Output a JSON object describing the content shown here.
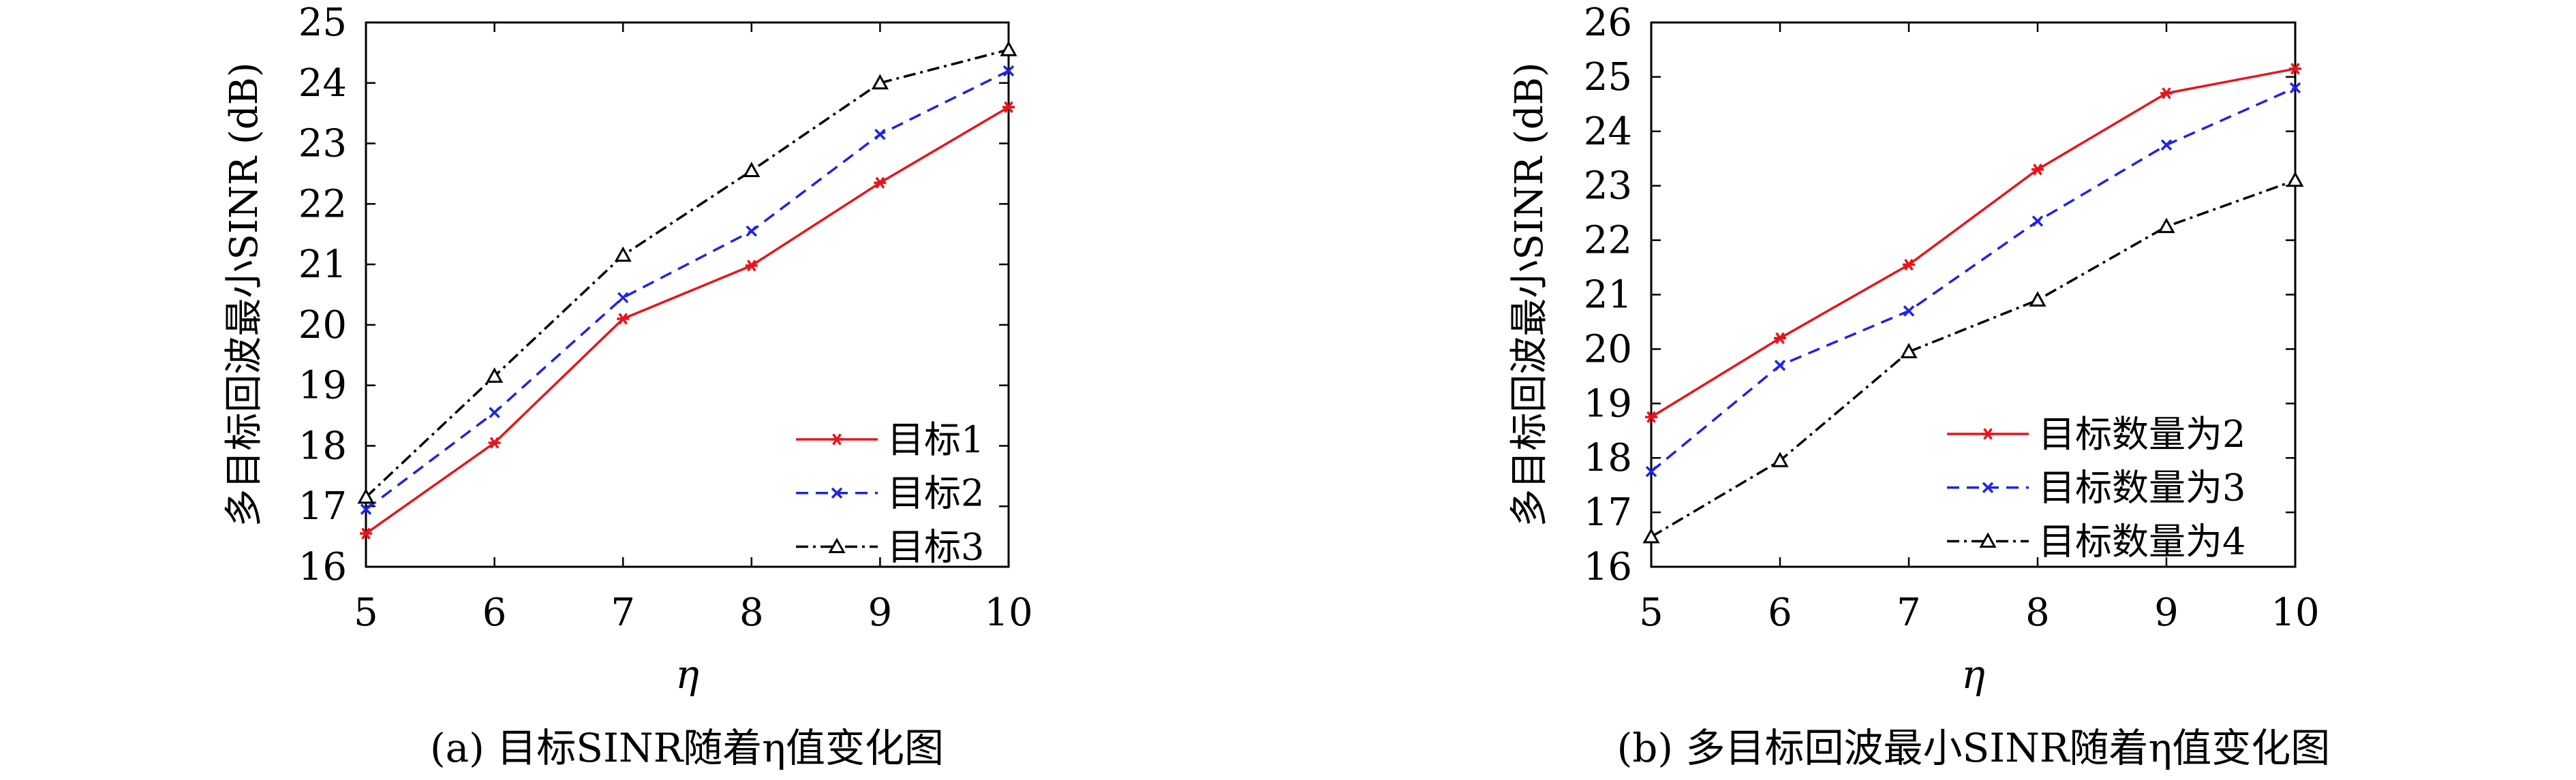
{
  "chart_data": [
    {
      "type": "line",
      "caption": "(a) 目标SINR随着η值变化图",
      "xlabel": "η",
      "ylabel": "多目标回波最小SINR (dB)",
      "x": [
        5,
        6,
        7,
        8,
        9,
        10
      ],
      "xlim": [
        5,
        10
      ],
      "ylim": [
        16,
        25
      ],
      "xticks": [
        "5",
        "6",
        "7",
        "8",
        "9",
        "10"
      ],
      "yticks": [
        "16",
        "17",
        "18",
        "19",
        "20",
        "21",
        "22",
        "23",
        "24",
        "25"
      ],
      "grid": false,
      "legend_position": "bottom-right",
      "series": [
        {
          "name": "目标1",
          "color": "#e8141b",
          "dash": "solid",
          "marker": "asterisk",
          "values": [
            16.55,
            18.05,
            20.1,
            20.98,
            22.35,
            23.6
          ]
        },
        {
          "name": "目标2",
          "color": "#1f23e6",
          "dash": "dashed",
          "marker": "cross",
          "values": [
            16.95,
            18.55,
            20.45,
            21.55,
            23.15,
            24.2
          ]
        },
        {
          "name": "目标3",
          "color": "#000000",
          "dash": "dashdot",
          "marker": "triangle",
          "values": [
            17.15,
            19.15,
            21.15,
            22.55,
            24.0,
            24.55
          ]
        }
      ]
    },
    {
      "type": "line",
      "caption": "(b) 多目标回波最小SINR随着η值变化图",
      "xlabel": "η",
      "ylabel": "多目标回波最小SINR (dB)",
      "x": [
        5,
        6,
        7,
        8,
        9,
        10
      ],
      "xlim": [
        5,
        10
      ],
      "ylim": [
        16,
        26
      ],
      "xticks": [
        "5",
        "6",
        "7",
        "8",
        "9",
        "10"
      ],
      "yticks": [
        "16",
        "17",
        "18",
        "19",
        "20",
        "21",
        "22",
        "23",
        "24",
        "25",
        "26"
      ],
      "grid": false,
      "legend_position": "bottom-right",
      "series": [
        {
          "name": "目标数量为2",
          "color": "#e8141b",
          "dash": "solid",
          "marker": "asterisk",
          "values": [
            18.75,
            20.2,
            21.55,
            23.3,
            24.7,
            25.15
          ]
        },
        {
          "name": "目标数量为3",
          "color": "#1f23e6",
          "dash": "dashed",
          "marker": "cross",
          "values": [
            17.75,
            19.7,
            20.7,
            22.35,
            23.75,
            24.8
          ]
        },
        {
          "name": "目标数量为4",
          "color": "#000000",
          "dash": "dashdot",
          "marker": "triangle",
          "values": [
            16.55,
            17.95,
            19.95,
            20.9,
            22.25,
            23.1
          ]
        }
      ]
    }
  ]
}
